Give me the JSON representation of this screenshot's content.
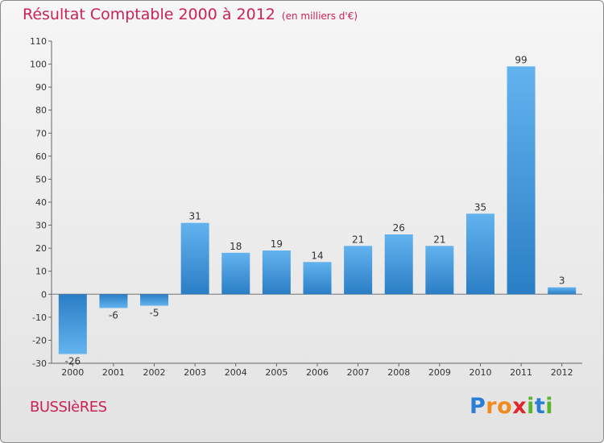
{
  "chart_data": {
    "type": "bar",
    "title": "Résultat Comptable 2000 à 2012",
    "subtitle": "(en milliers d'€)",
    "categories": [
      "2000",
      "2001",
      "2002",
      "2003",
      "2004",
      "2005",
      "2006",
      "2007",
      "2008",
      "2009",
      "2010",
      "2011",
      "2012"
    ],
    "values": [
      -26,
      -6,
      -5,
      31,
      18,
      19,
      14,
      21,
      26,
      21,
      35,
      99,
      3
    ],
    "ylim": [
      -30,
      110
    ],
    "yticks": [
      -30,
      -20,
      -10,
      0,
      10,
      20,
      30,
      40,
      50,
      60,
      70,
      80,
      90,
      100,
      110
    ],
    "grid": false,
    "xlabel": "",
    "ylabel": ""
  },
  "footer": {
    "location": "BUSSIèRES",
    "logo_letters": [
      {
        "ch": "P",
        "color": "#2a7fd4"
      },
      {
        "ch": "r",
        "color": "#f08a1c"
      },
      {
        "ch": "o",
        "color": "#f08a1c"
      },
      {
        "ch": "x",
        "color": "#e0262a"
      },
      {
        "ch": "i",
        "color": "#5ab52e"
      },
      {
        "ch": "t",
        "color": "#2a7fd4"
      },
      {
        "ch": "i",
        "color": "#5ab52e"
      }
    ]
  },
  "colors": {
    "bar_light": "#5fb0ec",
    "bar_dark": "#2a7fc4",
    "title": "#cc2255"
  }
}
